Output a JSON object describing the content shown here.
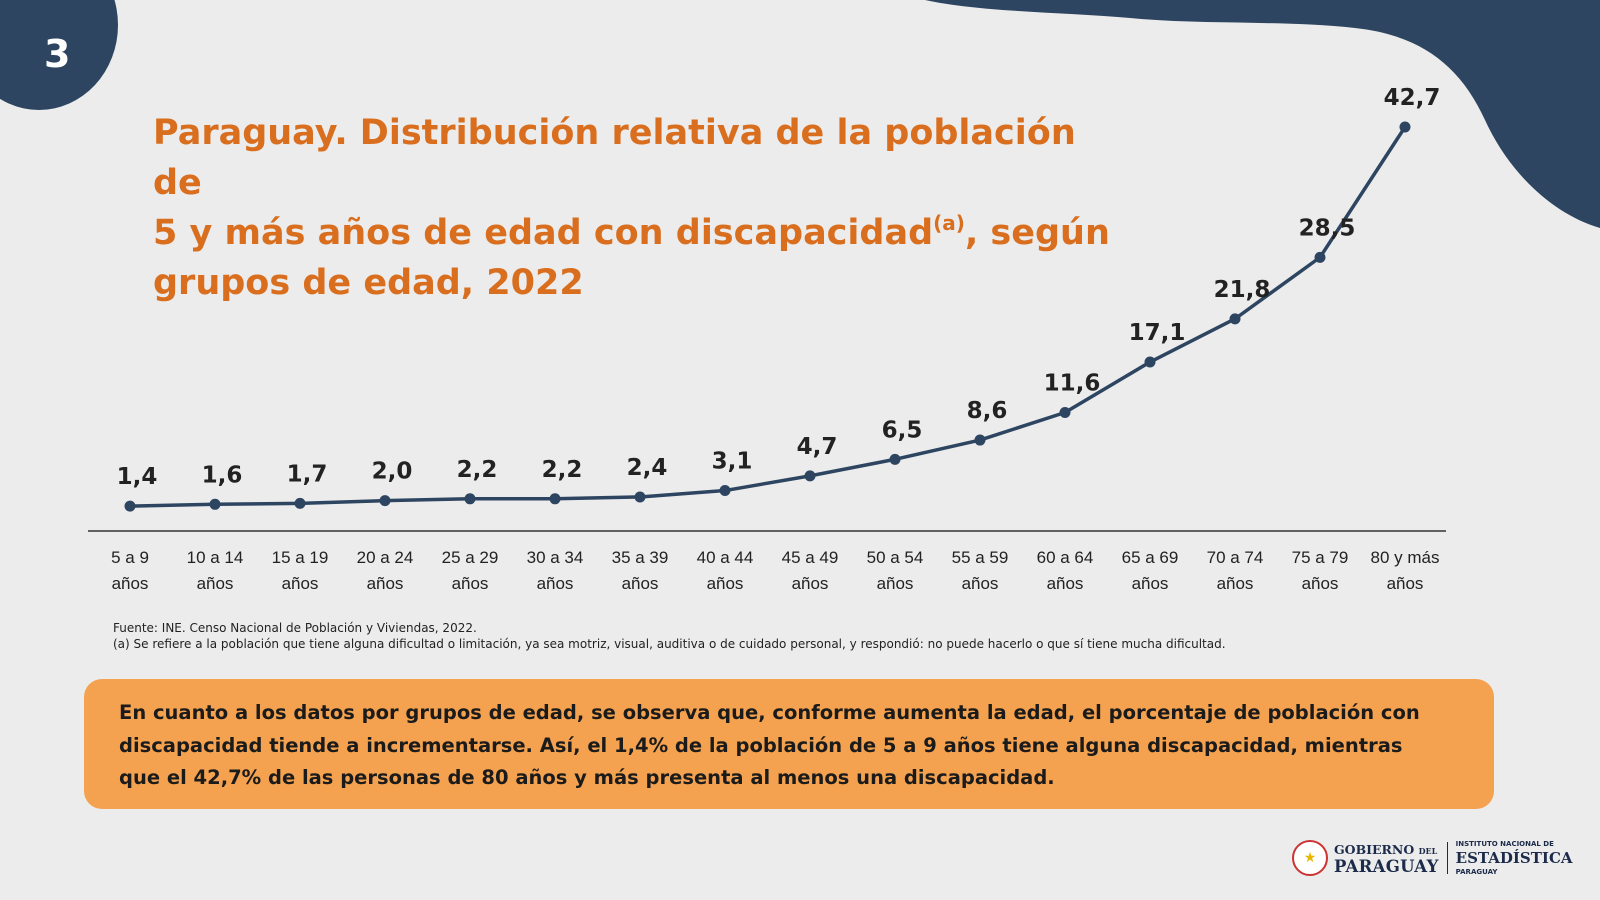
{
  "page_number": "3",
  "title": {
    "line1": "Paraguay. Distribución relativa de la población de",
    "line2": "5 y más años de edad con discapacidad",
    "superscript": "(a)",
    "line2_tail": ",  según",
    "line3": "grupos de edad, 2022"
  },
  "colors": {
    "background": "#ececec",
    "navy": "#2d4560",
    "title_orange": "#d86e1e",
    "note_box": "#f4a24f",
    "line": "#2d4560"
  },
  "chart_data": {
    "type": "line",
    "categories": [
      [
        "5 a 9",
        "años"
      ],
      [
        "10 a 14",
        "años"
      ],
      [
        "15 a 19",
        "años"
      ],
      [
        "20 a 24",
        "años"
      ],
      [
        "25 a 29",
        "años"
      ],
      [
        "30 a 34",
        "años"
      ],
      [
        "35 a 39",
        "años"
      ],
      [
        "40 a 44",
        "años"
      ],
      [
        "45 a 49",
        "años"
      ],
      [
        "50 a 54",
        "años"
      ],
      [
        "55 a 59",
        "años"
      ],
      [
        "60 a 64",
        "años"
      ],
      [
        "65 a 69",
        "años"
      ],
      [
        "70 a 74",
        "años"
      ],
      [
        "75 a 79",
        "años"
      ],
      [
        "80 y más",
        "años"
      ]
    ],
    "values": [
      1.4,
      1.6,
      1.7,
      2.0,
      2.2,
      2.2,
      2.4,
      3.1,
      4.7,
      6.5,
      8.6,
      11.6,
      17.1,
      21.8,
      28.5,
      42.7
    ],
    "data_labels": [
      "1,4",
      "1,6",
      "1,7",
      "2,0",
      "2,2",
      "2,2",
      "2,4",
      "3,1",
      "4,7",
      "6,5",
      "8,6",
      "11,6",
      "17,1",
      "21,8",
      "28,5",
      "42,7"
    ],
    "ylim": [
      0,
      42.7
    ],
    "grid": false,
    "y_axis_visible": false,
    "legend": "none"
  },
  "source": {
    "line1": "Fuente: INE. Censo Nacional de Población y Viviendas, 2022.",
    "line2": "(a) Se refiere a la población que tiene alguna dificultad o limitación, ya sea motriz, visual, auditiva o de cuidado personal, y respondió: no puede hacerlo o que sí tiene mucha dificultad."
  },
  "note": "En cuanto a los datos por grupos de edad, se observa que, conforme aumenta la edad, el porcentaje de población con discapacidad tiende a incrementarse. Así, el 1,4% de la población de 5 a 9 años tiene alguna discapacidad, mientras que el 42,7% de las personas de 80 años y más presenta al menos una discapacidad.",
  "logos": {
    "gobierno_line1": "GOBIERNO",
    "gobierno_del": "DEL",
    "gobierno_line2": "PARAGUAY",
    "ine_line1": "INSTITUTO NACIONAL DE",
    "ine_line2": "ESTADÍSTICA",
    "ine_line3": "PARAGUAY"
  }
}
